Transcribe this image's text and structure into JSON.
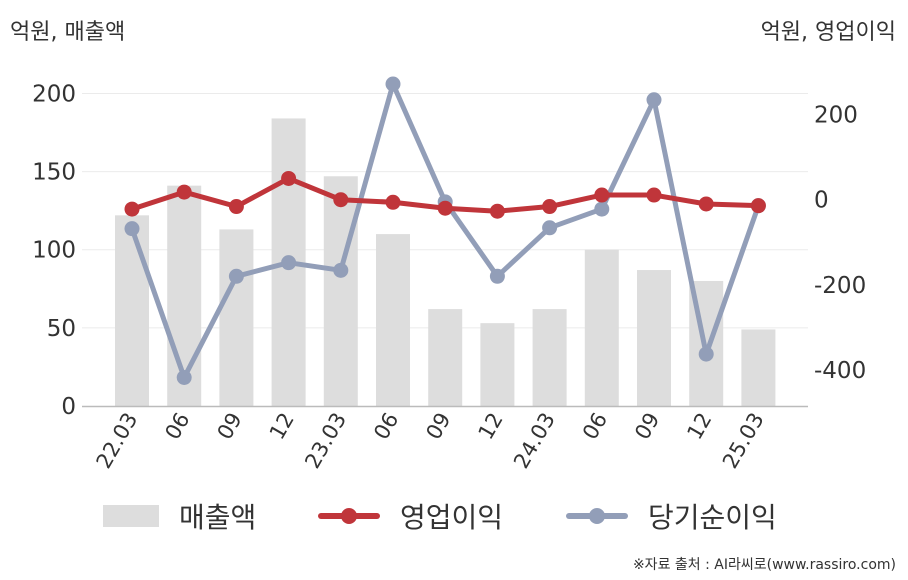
{
  "header": {
    "left_unit": "억원, 매출액",
    "right_unit": "억원, 영업이익"
  },
  "legend": {
    "sales": "매출액",
    "operating_profit": "영업이익",
    "net_income": "당기순이익"
  },
  "source": "※자료 출처 : AI라씨로(www.rassiro.com)",
  "colors": {
    "sales": "#dddddd",
    "operating_profit": "#c0353a",
    "net_income": "#929eb8"
  },
  "chart_data": {
    "type": "bar",
    "categories": [
      "22.03",
      "06",
      "09",
      "12",
      "23.03",
      "06",
      "09",
      "12",
      "24.03",
      "06",
      "09",
      "12",
      "25.03"
    ],
    "left_axis": {
      "ticks": [
        0,
        50,
        100,
        150,
        200
      ],
      "ylim": [
        0,
        215
      ]
    },
    "right_axis": {
      "ticks": [
        -400,
        -200,
        0,
        200
      ],
      "ylim": [
        -485,
        305
      ]
    },
    "grid": true,
    "legend_position": "bottom",
    "series": [
      {
        "name": "매출액",
        "type": "bar",
        "axis": "left",
        "values": [
          122,
          141,
          113,
          184,
          147,
          110,
          62,
          53,
          62,
          100,
          87,
          80,
          49
        ]
      },
      {
        "name": "영업이익",
        "type": "line",
        "axis": "right",
        "values": [
          -22,
          18,
          -16,
          50,
          0,
          -6,
          -20,
          -27,
          -16,
          11,
          11,
          -10,
          -14
        ]
      },
      {
        "name": "당기순이익",
        "type": "line",
        "axis": "right",
        "values": [
          -68,
          -418,
          -180,
          -148,
          -166,
          272,
          -5,
          -180,
          -66,
          -22,
          235,
          -363,
          -14
        ]
      }
    ]
  }
}
